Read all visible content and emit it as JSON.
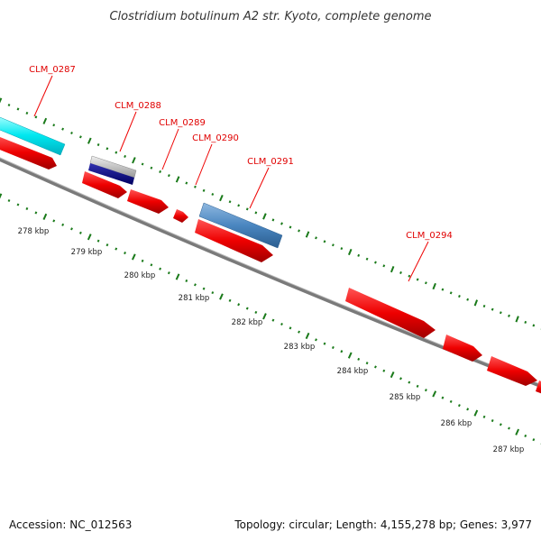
{
  "title": "Clostridium botulinum A2 str. Kyoto, complete genome",
  "footer": {
    "accession": "Accession: NC_012563",
    "summary": "Topology: circular; Length: 4,155,278 bp; Genes: 3,977"
  },
  "gene_labels": [
    {
      "name": "CLM_0287"
    },
    {
      "name": "CLM_0288"
    },
    {
      "name": "CLM_0289"
    },
    {
      "name": "CLM_0290"
    },
    {
      "name": "CLM_0291"
    },
    {
      "name": "CLM_0294"
    }
  ],
  "kbp_labels": [
    "278 kbp",
    "279 kbp",
    "280 kbp",
    "281 kbp",
    "282 kbp",
    "283 kbp",
    "284 kbp",
    "285 kbp",
    "286 kbp",
    "287 kbp"
  ],
  "colors": {
    "cds": "#ee0000",
    "trna": "#00e8f0",
    "rrna_band": "#bbbbbb",
    "rrna_dark": "#000080",
    "other_feature": "#4a86c0",
    "backbone": "#888888",
    "ticks": "#1a7a1a",
    "label_line": "#ee0000"
  }
}
